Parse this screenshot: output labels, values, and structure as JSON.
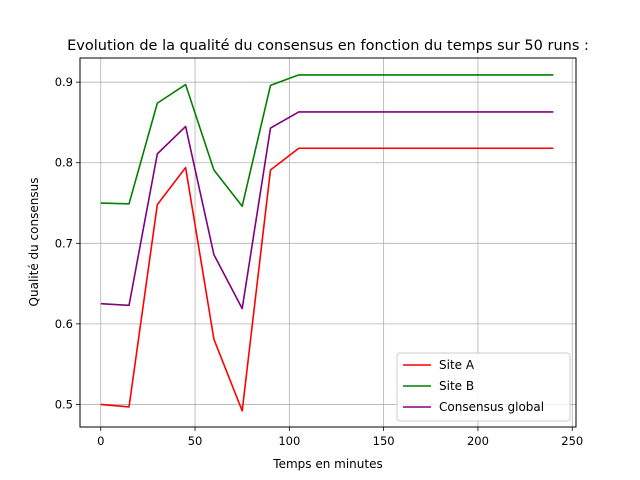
{
  "chart_data": {
    "type": "line",
    "title": "Evolution de la qualité du consensus en fonction du temps sur 50 runs :",
    "xlabel": "Temps en minutes",
    "ylabel": "Qualité du consensus",
    "xlim": [
      -11,
      252
    ],
    "ylim": [
      0.472,
      0.93
    ],
    "x_ticks": [
      0,
      50,
      100,
      150,
      200,
      250
    ],
    "y_ticks": [
      0.5,
      0.6,
      0.7,
      0.8,
      0.9
    ],
    "grid": true,
    "legend_position": "lower-right",
    "x": [
      0,
      15,
      30,
      45,
      60,
      75,
      90,
      105,
      120,
      135,
      150,
      165,
      180,
      195,
      210,
      225,
      240
    ],
    "series": [
      {
        "name": "Site A",
        "color": "#ff0000",
        "values": [
          0.5,
          0.497,
          0.748,
          0.794,
          0.581,
          0.492,
          0.791,
          0.818,
          0.818,
          0.818,
          0.818,
          0.818,
          0.818,
          0.818,
          0.818,
          0.818,
          0.818
        ]
      },
      {
        "name": "Site B",
        "color": "#008000",
        "values": [
          0.75,
          0.749,
          0.874,
          0.897,
          0.791,
          0.746,
          0.896,
          0.909,
          0.909,
          0.909,
          0.909,
          0.909,
          0.909,
          0.909,
          0.909,
          0.909,
          0.909
        ]
      },
      {
        "name": "Consensus global",
        "color": "#800080",
        "values": [
          0.625,
          0.623,
          0.811,
          0.845,
          0.686,
          0.619,
          0.843,
          0.863,
          0.863,
          0.863,
          0.863,
          0.863,
          0.863,
          0.863,
          0.863,
          0.863,
          0.863
        ]
      }
    ]
  }
}
